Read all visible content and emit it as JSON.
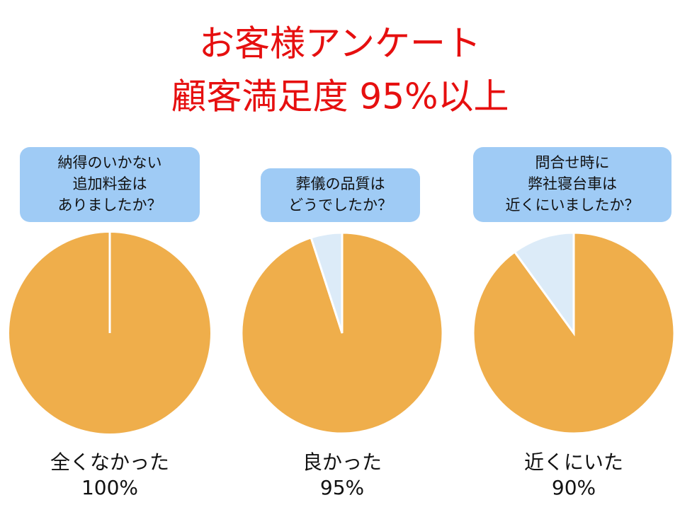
{
  "header": {
    "lines": [
      "お客様アンケート",
      "顧客満足度 95%以上"
    ]
  },
  "chart_data": [
    {
      "type": "pie",
      "question": [
        "納得のいかない",
        "追加料金は",
        "ありましたか？"
      ],
      "answer": "全くなかった",
      "values": [
        100,
        0
      ],
      "value_labels": [
        "100%",
        null
      ],
      "colors": [
        "#efae4b",
        "#dcebf8"
      ]
    },
    {
      "type": "pie",
      "question": [
        "葬儀の品質は",
        "どうでしたか？"
      ],
      "answer": "良かった",
      "values": [
        95,
        5
      ],
      "value_labels": [
        "95%",
        null
      ],
      "colors": [
        "#efae4b",
        "#dcebf8"
      ]
    },
    {
      "type": "pie",
      "question": [
        "問合せ時に",
        "弊社寝台車は",
        "近くにいましたか？"
      ],
      "answer": "近くにいた",
      "values": [
        90,
        10
      ],
      "value_labels": [
        "90%",
        null
      ],
      "colors": [
        "#efae4b",
        "#dcebf8"
      ]
    }
  ]
}
